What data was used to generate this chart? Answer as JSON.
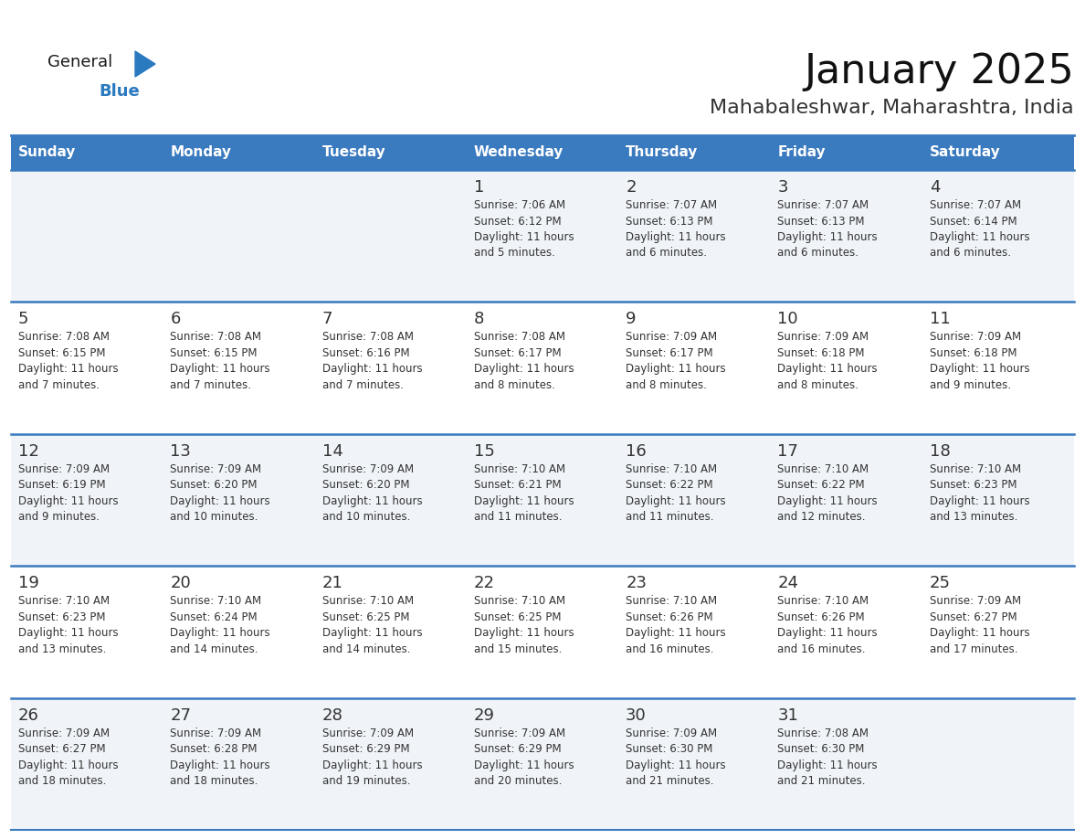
{
  "title": "January 2025",
  "subtitle": "Mahabaleshwar, Maharashtra, India",
  "header_bg": "#3a7abf",
  "header_text_color": "#ffffff",
  "day_names": [
    "Sunday",
    "Monday",
    "Tuesday",
    "Wednesday",
    "Thursday",
    "Friday",
    "Saturday"
  ],
  "row_bg_even": "#f0f4f8",
  "row_bg_odd": "#ffffff",
  "cell_text_color": "#333333",
  "divider_color": "#3a7abf",
  "days": [
    {
      "day": 1,
      "col": 3,
      "row": 0,
      "sunrise": "7:06 AM",
      "sunset": "6:12 PM",
      "dl_hours": 11,
      "dl_mins": 5
    },
    {
      "day": 2,
      "col": 4,
      "row": 0,
      "sunrise": "7:07 AM",
      "sunset": "6:13 PM",
      "dl_hours": 11,
      "dl_mins": 6
    },
    {
      "day": 3,
      "col": 5,
      "row": 0,
      "sunrise": "7:07 AM",
      "sunset": "6:13 PM",
      "dl_hours": 11,
      "dl_mins": 6
    },
    {
      "day": 4,
      "col": 6,
      "row": 0,
      "sunrise": "7:07 AM",
      "sunset": "6:14 PM",
      "dl_hours": 11,
      "dl_mins": 6
    },
    {
      "day": 5,
      "col": 0,
      "row": 1,
      "sunrise": "7:08 AM",
      "sunset": "6:15 PM",
      "dl_hours": 11,
      "dl_mins": 7
    },
    {
      "day": 6,
      "col": 1,
      "row": 1,
      "sunrise": "7:08 AM",
      "sunset": "6:15 PM",
      "dl_hours": 11,
      "dl_mins": 7
    },
    {
      "day": 7,
      "col": 2,
      "row": 1,
      "sunrise": "7:08 AM",
      "sunset": "6:16 PM",
      "dl_hours": 11,
      "dl_mins": 7
    },
    {
      "day": 8,
      "col": 3,
      "row": 1,
      "sunrise": "7:08 AM",
      "sunset": "6:17 PM",
      "dl_hours": 11,
      "dl_mins": 8
    },
    {
      "day": 9,
      "col": 4,
      "row": 1,
      "sunrise": "7:09 AM",
      "sunset": "6:17 PM",
      "dl_hours": 11,
      "dl_mins": 8
    },
    {
      "day": 10,
      "col": 5,
      "row": 1,
      "sunrise": "7:09 AM",
      "sunset": "6:18 PM",
      "dl_hours": 11,
      "dl_mins": 8
    },
    {
      "day": 11,
      "col": 6,
      "row": 1,
      "sunrise": "7:09 AM",
      "sunset": "6:18 PM",
      "dl_hours": 11,
      "dl_mins": 9
    },
    {
      "day": 12,
      "col": 0,
      "row": 2,
      "sunrise": "7:09 AM",
      "sunset": "6:19 PM",
      "dl_hours": 11,
      "dl_mins": 9
    },
    {
      "day": 13,
      "col": 1,
      "row": 2,
      "sunrise": "7:09 AM",
      "sunset": "6:20 PM",
      "dl_hours": 11,
      "dl_mins": 10
    },
    {
      "day": 14,
      "col": 2,
      "row": 2,
      "sunrise": "7:09 AM",
      "sunset": "6:20 PM",
      "dl_hours": 11,
      "dl_mins": 10
    },
    {
      "day": 15,
      "col": 3,
      "row": 2,
      "sunrise": "7:10 AM",
      "sunset": "6:21 PM",
      "dl_hours": 11,
      "dl_mins": 11
    },
    {
      "day": 16,
      "col": 4,
      "row": 2,
      "sunrise": "7:10 AM",
      "sunset": "6:22 PM",
      "dl_hours": 11,
      "dl_mins": 11
    },
    {
      "day": 17,
      "col": 5,
      "row": 2,
      "sunrise": "7:10 AM",
      "sunset": "6:22 PM",
      "dl_hours": 11,
      "dl_mins": 12
    },
    {
      "day": 18,
      "col": 6,
      "row": 2,
      "sunrise": "7:10 AM",
      "sunset": "6:23 PM",
      "dl_hours": 11,
      "dl_mins": 13
    },
    {
      "day": 19,
      "col": 0,
      "row": 3,
      "sunrise": "7:10 AM",
      "sunset": "6:23 PM",
      "dl_hours": 11,
      "dl_mins": 13
    },
    {
      "day": 20,
      "col": 1,
      "row": 3,
      "sunrise": "7:10 AM",
      "sunset": "6:24 PM",
      "dl_hours": 11,
      "dl_mins": 14
    },
    {
      "day": 21,
      "col": 2,
      "row": 3,
      "sunrise": "7:10 AM",
      "sunset": "6:25 PM",
      "dl_hours": 11,
      "dl_mins": 14
    },
    {
      "day": 22,
      "col": 3,
      "row": 3,
      "sunrise": "7:10 AM",
      "sunset": "6:25 PM",
      "dl_hours": 11,
      "dl_mins": 15
    },
    {
      "day": 23,
      "col": 4,
      "row": 3,
      "sunrise": "7:10 AM",
      "sunset": "6:26 PM",
      "dl_hours": 11,
      "dl_mins": 16
    },
    {
      "day": 24,
      "col": 5,
      "row": 3,
      "sunrise": "7:10 AM",
      "sunset": "6:26 PM",
      "dl_hours": 11,
      "dl_mins": 16
    },
    {
      "day": 25,
      "col": 6,
      "row": 3,
      "sunrise": "7:09 AM",
      "sunset": "6:27 PM",
      "dl_hours": 11,
      "dl_mins": 17
    },
    {
      "day": 26,
      "col": 0,
      "row": 4,
      "sunrise": "7:09 AM",
      "sunset": "6:27 PM",
      "dl_hours": 11,
      "dl_mins": 18
    },
    {
      "day": 27,
      "col": 1,
      "row": 4,
      "sunrise": "7:09 AM",
      "sunset": "6:28 PM",
      "dl_hours": 11,
      "dl_mins": 18
    },
    {
      "day": 28,
      "col": 2,
      "row": 4,
      "sunrise": "7:09 AM",
      "sunset": "6:29 PM",
      "dl_hours": 11,
      "dl_mins": 19
    },
    {
      "day": 29,
      "col": 3,
      "row": 4,
      "sunrise": "7:09 AM",
      "sunset": "6:29 PM",
      "dl_hours": 11,
      "dl_mins": 20
    },
    {
      "day": 30,
      "col": 4,
      "row": 4,
      "sunrise": "7:09 AM",
      "sunset": "6:30 PM",
      "dl_hours": 11,
      "dl_mins": 21
    },
    {
      "day": 31,
      "col": 5,
      "row": 4,
      "sunrise": "7:08 AM",
      "sunset": "6:30 PM",
      "dl_hours": 11,
      "dl_mins": 21
    }
  ],
  "logo_general_color": "#1a1a1a",
  "logo_blue_color": "#2a7abf",
  "logo_triangle_color": "#2a7abf",
  "title_fontsize": 32,
  "subtitle_fontsize": 16,
  "header_fontsize": 11,
  "day_num_fontsize": 13,
  "cell_fontsize": 8.5
}
